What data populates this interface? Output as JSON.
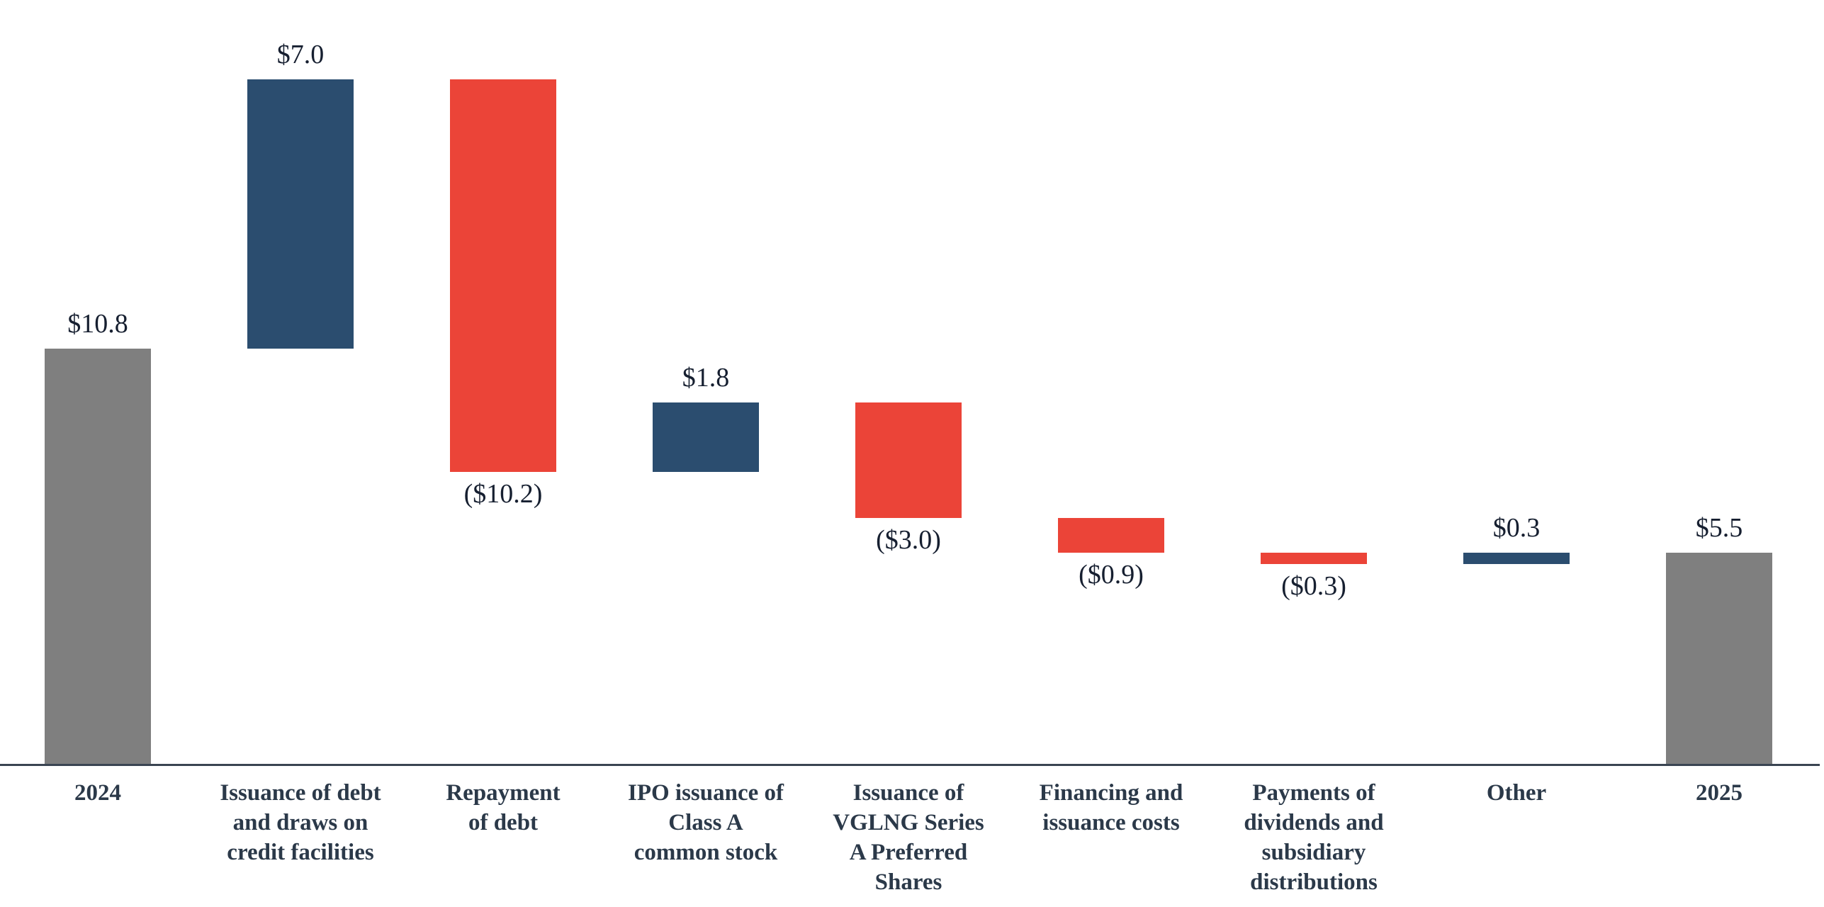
{
  "chart_data": {
    "type": "bar",
    "subtype": "waterfall",
    "title": "",
    "xlabel": "",
    "ylabel": "",
    "ylim": [
      0,
      18
    ],
    "grid": false,
    "y_axis_visible": false,
    "legend": "none",
    "colors": {
      "total": "#7F7F7F",
      "increase": "#2B4D6F",
      "decrease": "#EB4438",
      "axis_line": "#3A4452",
      "value_label_text": "#161F30",
      "category_label_text": "#2B3949"
    },
    "categories": [
      "2024",
      "Issuance of debt and draws on credit facilities",
      "Repayment of debt",
      "IPO issuance of Class A common stock",
      "Issuance of VGLNG Series A Preferred Shares",
      "Financing and issuance costs",
      "Payments of dividends and subsidiary distributions",
      "Other",
      "2025"
    ],
    "bars": [
      {
        "category": "2024",
        "label_lines": "2024",
        "value": 10.8,
        "kind": "total",
        "display": "$10.8",
        "label_position": "above"
      },
      {
        "category": "Issuance of debt and draws on credit facilities",
        "label_lines": "Issuance of debt\nand draws on\ncredit facilities",
        "value": 7.0,
        "kind": "increase",
        "display": "$7.0",
        "label_position": "above"
      },
      {
        "category": "Repayment of debt",
        "label_lines": "Repayment\nof debt",
        "value": -10.2,
        "kind": "decrease",
        "display": "($10.2)",
        "label_position": "below"
      },
      {
        "category": "IPO issuance of Class A common stock",
        "label_lines": "IPO issuance of\nClass A\ncommon stock",
        "value": 1.8,
        "kind": "increase",
        "display": "$1.8",
        "label_position": "above"
      },
      {
        "category": "Issuance of VGLNG Series A Preferred Shares",
        "label_lines": "Issuance of\nVGLNG Series\nA Preferred\nShares",
        "value": -3.0,
        "kind": "decrease",
        "display": "($3.0)",
        "label_position": "below"
      },
      {
        "category": "Financing and issuance costs",
        "label_lines": "Financing and\nissuance costs",
        "value": -0.9,
        "kind": "decrease",
        "display": "($0.9)",
        "label_position": "below"
      },
      {
        "category": "Payments of dividends and subsidiary distributions",
        "label_lines": "Payments of\ndividends and\nsubsidiary\ndistributions",
        "value": -0.3,
        "kind": "decrease",
        "display": "($0.3)",
        "label_position": "below"
      },
      {
        "category": "Other",
        "label_lines": "Other",
        "value": 0.3,
        "kind": "increase",
        "display": "$0.3",
        "label_position": "above"
      },
      {
        "category": "2025",
        "label_lines": "2025",
        "value": 5.5,
        "kind": "total",
        "display": "$5.5",
        "label_position": "above"
      }
    ],
    "cumulative_levels": [
      10.8,
      17.8,
      7.6,
      9.4,
      6.4,
      5.5,
      5.2,
      5.5,
      5.5
    ]
  }
}
